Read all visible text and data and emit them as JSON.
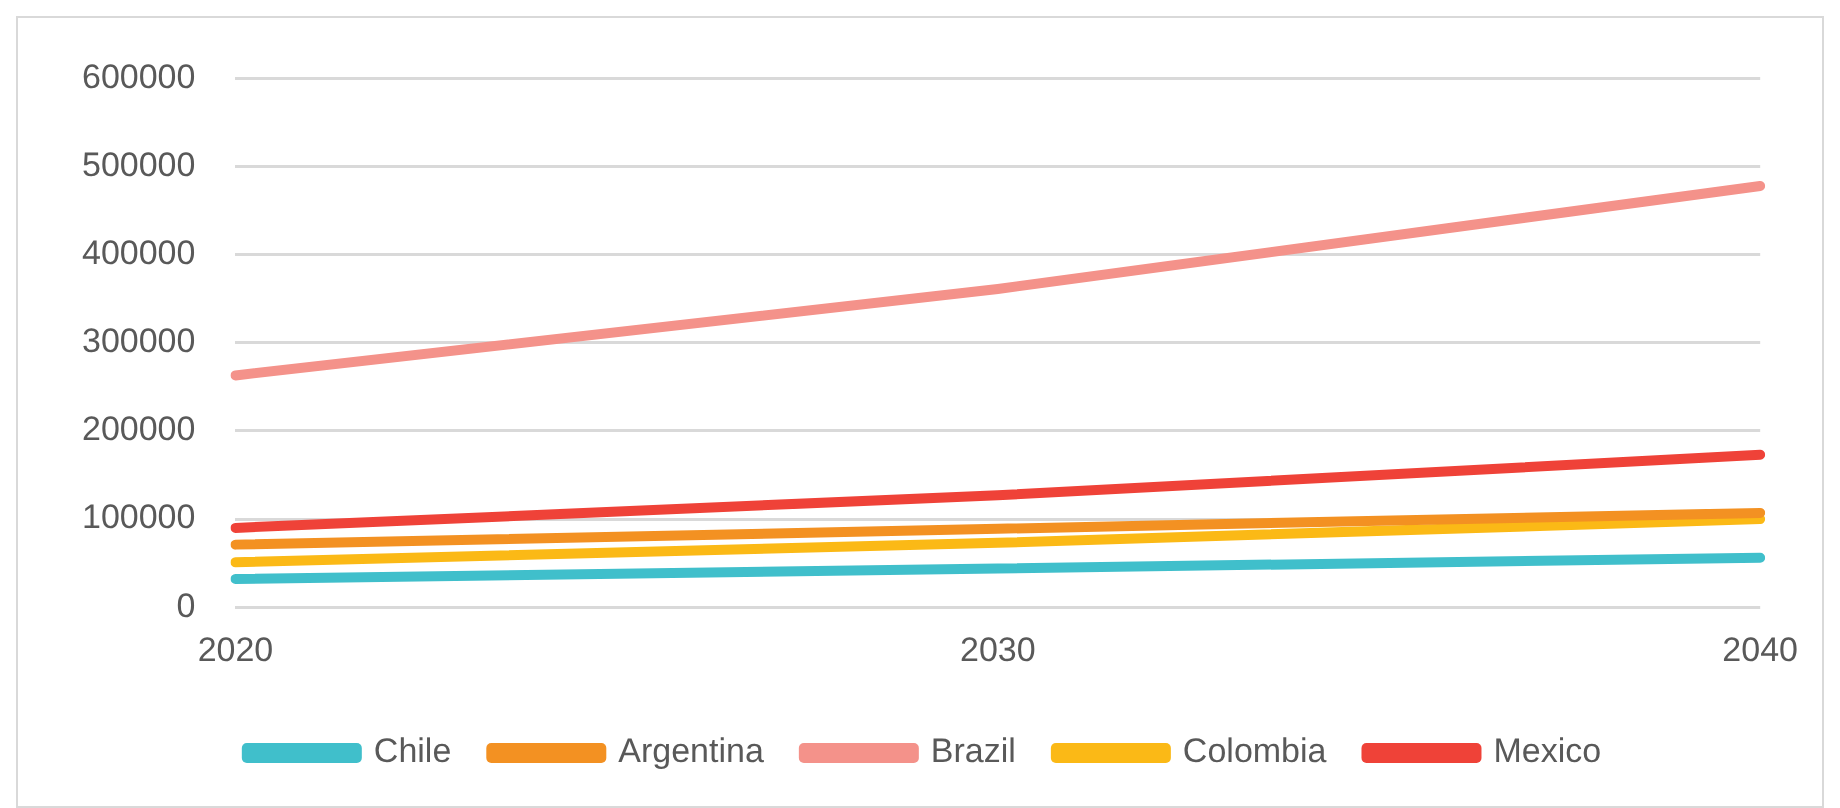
{
  "chart_data": {
    "type": "line",
    "categories": [
      "2020",
      "2030",
      "2040"
    ],
    "series": [
      {
        "name": "Chile",
        "color": "#40bfcb",
        "values": [
          32000,
          44000,
          56000
        ]
      },
      {
        "name": "Argentina",
        "color": "#f39122",
        "values": [
          71000,
          89000,
          107000
        ]
      },
      {
        "name": "Brazil",
        "color": "#f4928a",
        "values": [
          263000,
          361000,
          478000
        ]
      },
      {
        "name": "Colombia",
        "color": "#fbb916",
        "values": [
          51000,
          73000,
          100000
        ]
      },
      {
        "name": "Mexico",
        "color": "#ef4238",
        "values": [
          90000,
          127000,
          173000
        ]
      }
    ],
    "ylim": [
      0,
      600000
    ],
    "yticks": [
      0,
      100000,
      200000,
      300000,
      400000,
      500000,
      600000
    ],
    "grid": "y",
    "legend": "bottom",
    "marker": "none",
    "line_style": "solid"
  }
}
